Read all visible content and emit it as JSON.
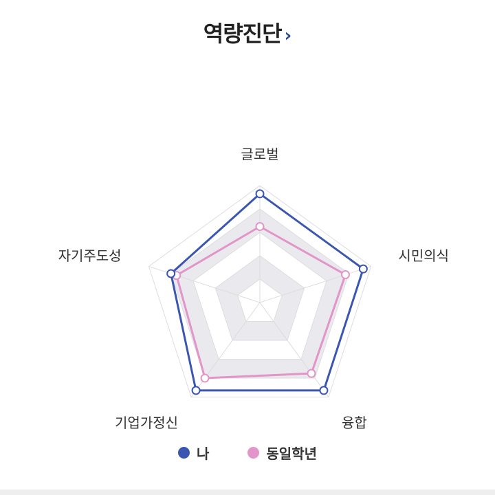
{
  "header": {
    "title": "역량진단",
    "arrow": "›"
  },
  "chart_data": {
    "type": "radar",
    "categories": [
      "글로벌",
      "시민의식",
      "융합",
      "기업가정신",
      "자기주도성"
    ],
    "rlim": [
      0,
      100
    ],
    "grid": true,
    "series": [
      {
        "name": "나",
        "color": "#3a56b0",
        "values": [
          93,
          93,
          93,
          93,
          80
        ]
      },
      {
        "name": "동일학년",
        "color": "#e295c8",
        "values": [
          65,
          77,
          75,
          80,
          75
        ]
      }
    ],
    "legend_position": "bottom-center"
  },
  "legend": {
    "items": [
      {
        "label": "나",
        "color": "#3a56b0"
      },
      {
        "label": "동일학년",
        "color": "#e295c8"
      }
    ]
  }
}
